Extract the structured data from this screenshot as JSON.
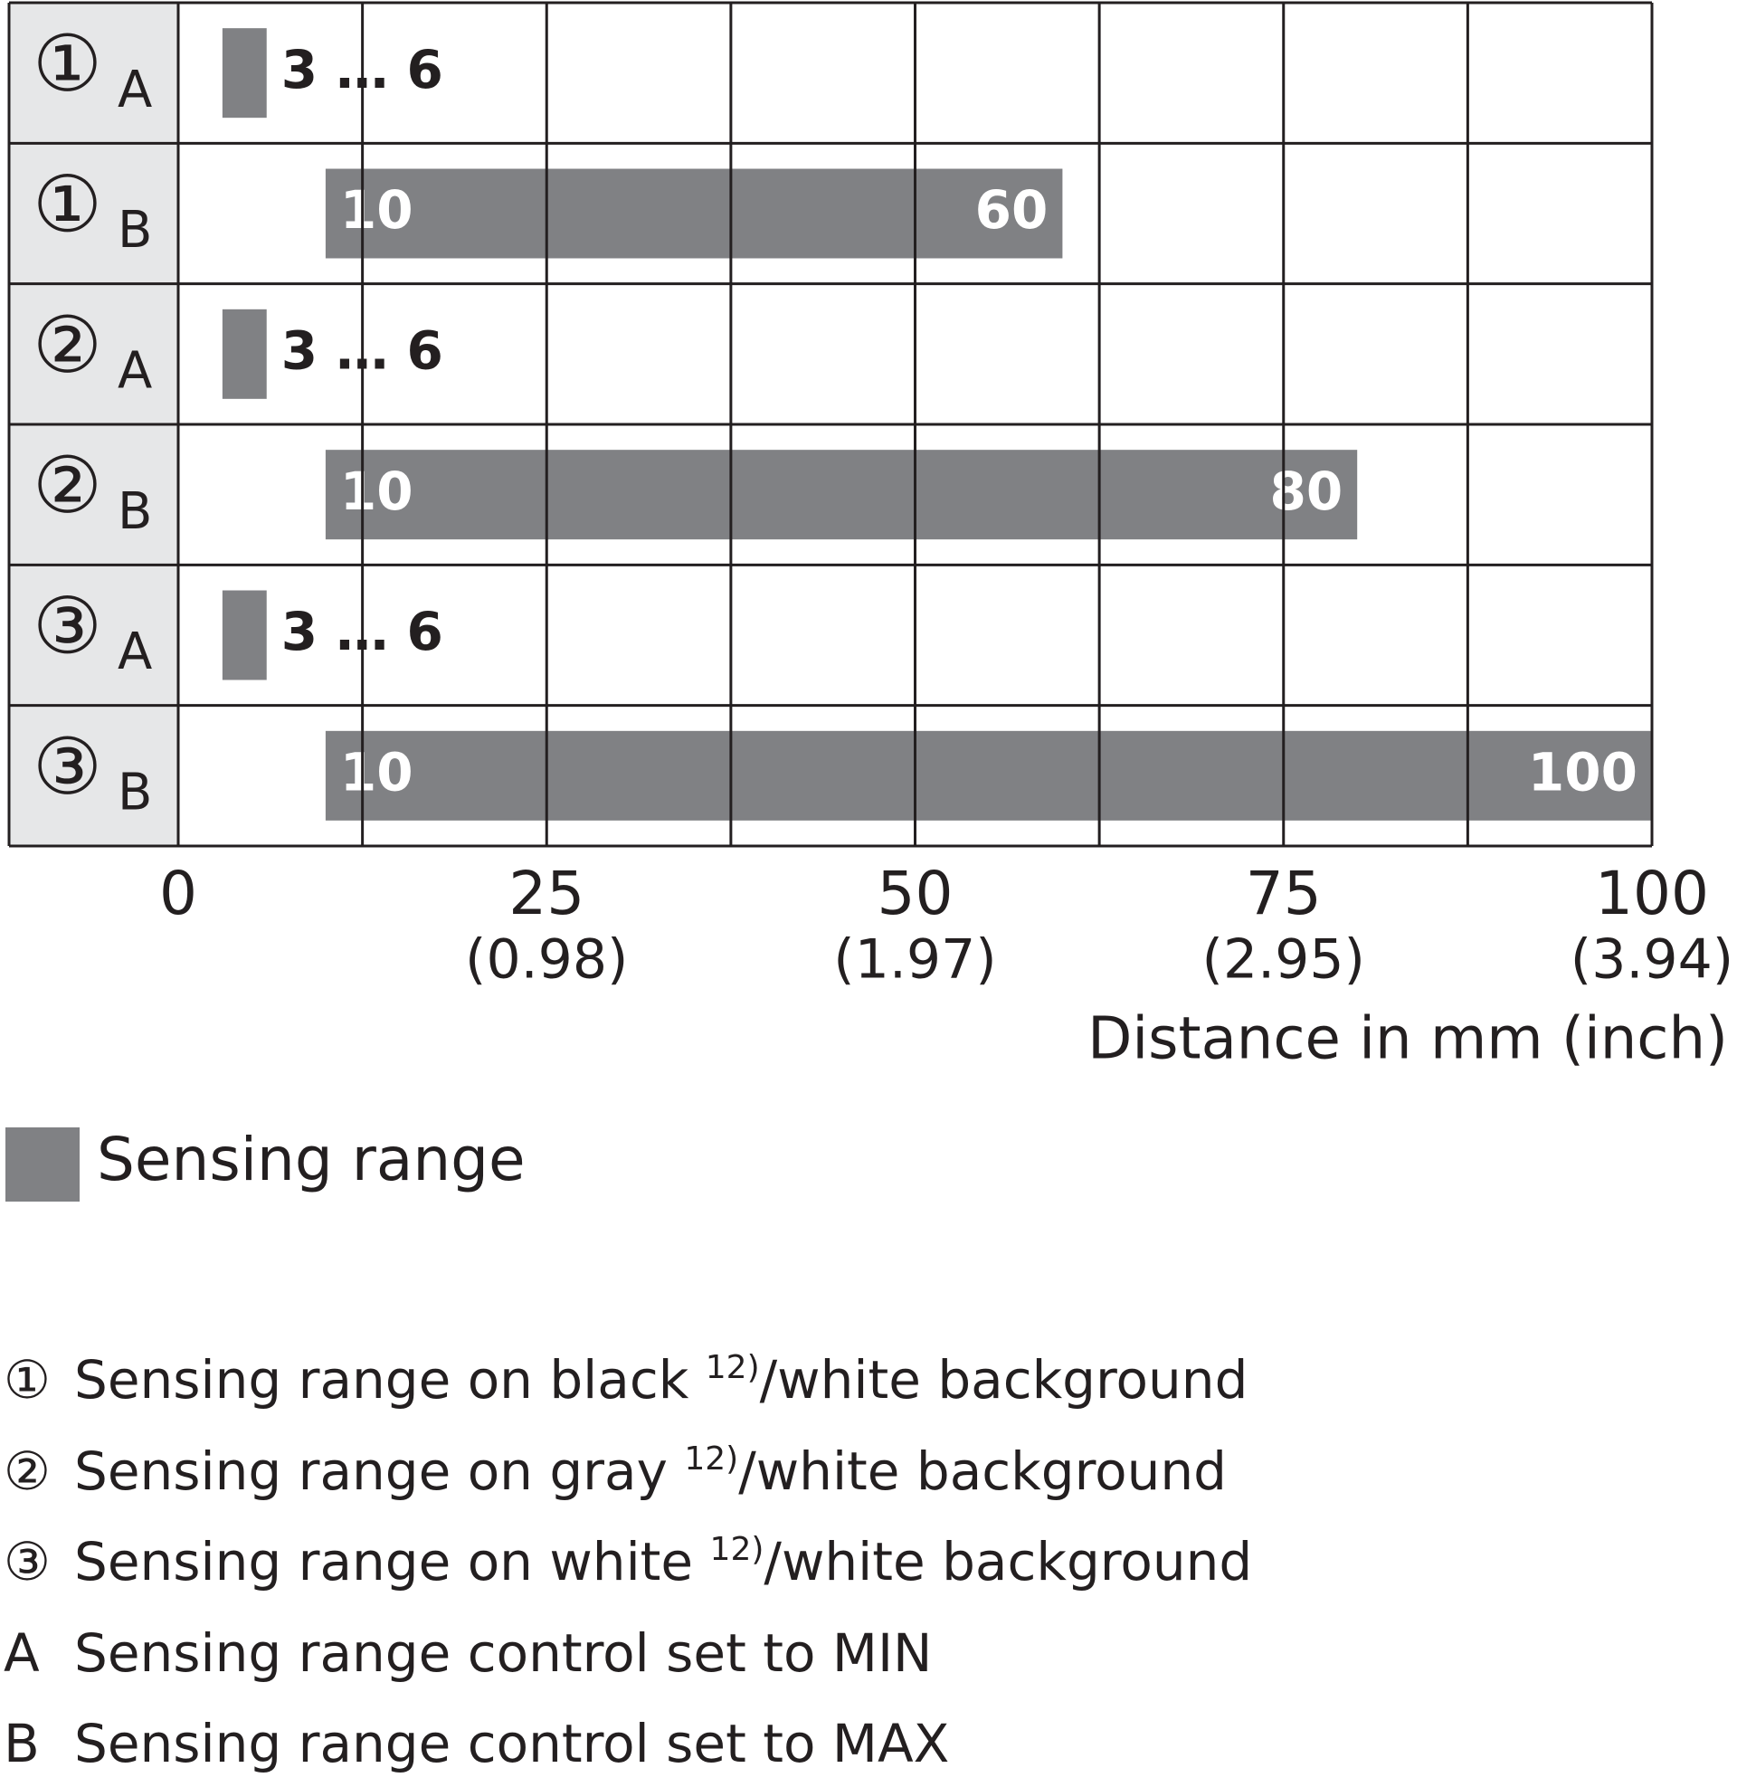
{
  "chart_data": {
    "type": "range_bar",
    "rows": [
      {
        "group": "①",
        "setting": "A",
        "start": 3,
        "end": 6,
        "label": "3 … 6"
      },
      {
        "group": "①",
        "setting": "B",
        "start": 10,
        "end": 60
      },
      {
        "group": "②",
        "setting": "A",
        "start": 3,
        "end": 6,
        "label": "3 … 6"
      },
      {
        "group": "②",
        "setting": "B",
        "start": 10,
        "end": 80
      },
      {
        "group": "③",
        "setting": "A",
        "start": 3,
        "end": 6,
        "label": "3 … 6"
      },
      {
        "group": "③",
        "setting": "B",
        "start": 10,
        "end": 100
      }
    ],
    "color": "#808184",
    "xlim": [
      0,
      100
    ],
    "xticks": [
      0,
      {
        "value": 25,
        "label": "25",
        "inch": "(0.98)"
      },
      {
        "value": 50,
        "label": "50",
        "inch": "(1.97)"
      },
      {
        "value": 75,
        "label": "75",
        "inch": "(2.95)"
      },
      {
        "value": 100,
        "label": "100",
        "inch": "(3.94)"
      }
    ],
    "xgrid": [
      0,
      12.5,
      25,
      37.5,
      50,
      62.5,
      75,
      87.5,
      100
    ],
    "xlabel": "Distance in mm (inch)",
    "legend": "Sensing range"
  },
  "notes": [
    {
      "key": "①",
      "text": "Sensing range on black ",
      "sup": "12)",
      "rest": "/white background"
    },
    {
      "key": "②",
      "text": "Sensing range on gray ",
      "sup": "12)",
      "rest": "/white background"
    },
    {
      "key": "③",
      "text": "Sensing range on white ",
      "sup": "12)",
      "rest": "/white background"
    },
    {
      "key": "A",
      "text": "Sensing range control set to MIN"
    },
    {
      "key": "B",
      "text": "Sensing range control set to MAX"
    }
  ]
}
